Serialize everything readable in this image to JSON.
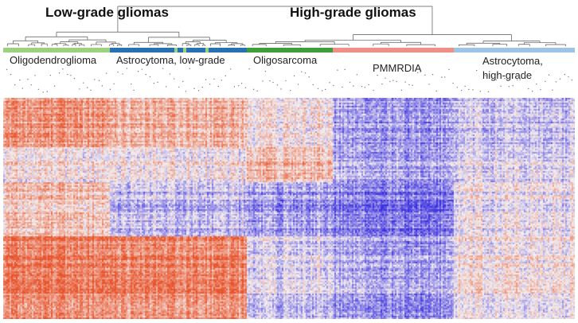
{
  "group_titles": {
    "low": "Low-grade gliomas",
    "high": "High-grade gliomas"
  },
  "classes": [
    {
      "label": "Oligodendroglioma",
      "color": "#9cd17f",
      "heat": "warm"
    },
    {
      "label": "Astrocytoma, low-grade",
      "color": "#2872b4",
      "heat": "warm-cool"
    },
    {
      "label": "Oligosarcoma",
      "color": "#3f9e3a",
      "heat": "mixed"
    },
    {
      "label": "PMMRDIA",
      "color": "#f08f85",
      "heat": "cool"
    },
    {
      "label": "Astrocytoma, high-grade",
      "label_line1": "Astrocytoma,",
      "label_line2": "high-grade",
      "color": "#9dc4e4",
      "heat": "mixed-cool"
    }
  ],
  "heatmap_colors": {
    "high": "#e8532a",
    "mid": "#f4f0f0",
    "low": "#3a2fe0"
  }
}
